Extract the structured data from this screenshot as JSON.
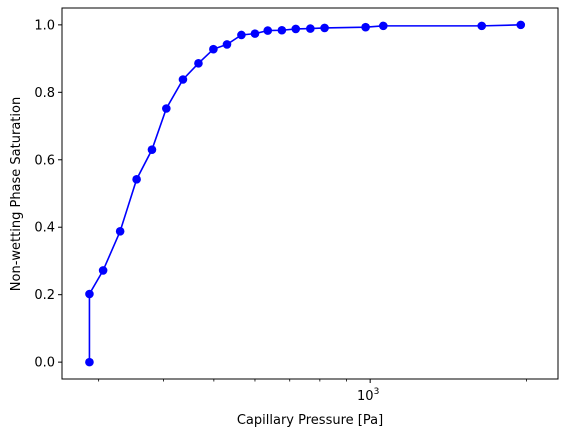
{
  "chart_data": {
    "type": "line",
    "title": "",
    "xlabel": "Capillary Pressure [Pa]",
    "ylabel": "Non-wetting Phase Saturation",
    "xscale": "log",
    "xlim": [
      255,
      2300
    ],
    "ylim": [
      -0.05,
      1.05
    ],
    "xticks": [
      {
        "value": 1000,
        "base": "10",
        "exp": "3"
      }
    ],
    "yticks": [
      0.0,
      0.2,
      0.4,
      0.6,
      0.8,
      1.0
    ],
    "ytick_labels": [
      "0.0",
      "0.2",
      "0.4",
      "0.6",
      "0.8",
      "1.0"
    ],
    "grid": false,
    "series": [
      {
        "color": "#0000ff",
        "marker": "circle",
        "x": [
          288,
          288,
          306,
          330,
          355,
          380,
          405,
          436,
          467,
          499,
          530,
          565,
          600,
          635,
          676,
          719,
          767,
          817,
          980,
          1060,
          1640,
          1950
        ],
        "y": [
          0.0,
          0.202,
          0.272,
          0.388,
          0.542,
          0.63,
          0.752,
          0.838,
          0.886,
          0.928,
          0.942,
          0.97,
          0.974,
          0.983,
          0.984,
          0.988,
          0.989,
          0.991,
          0.993,
          0.997,
          0.997,
          1.0
        ]
      }
    ]
  }
}
